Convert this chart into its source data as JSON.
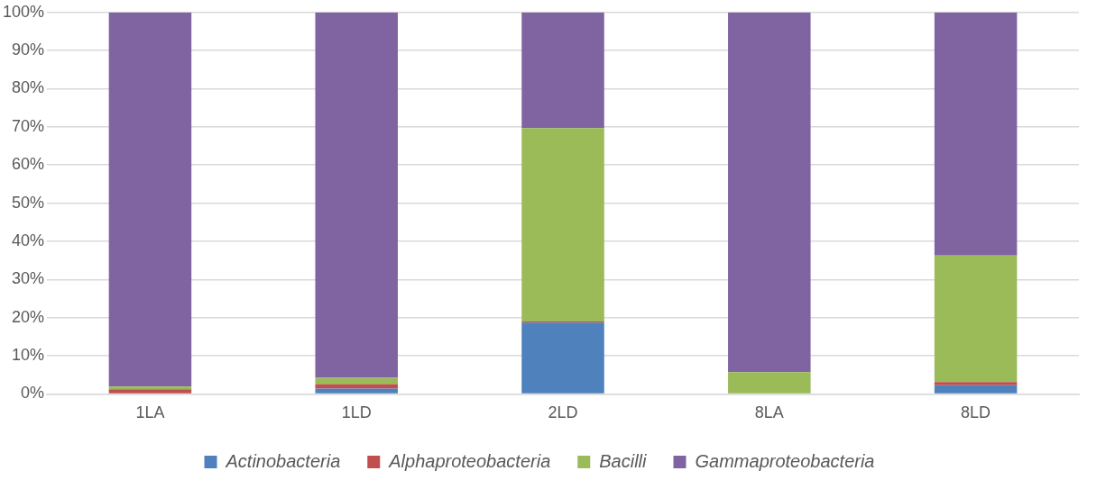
{
  "chart_data": {
    "type": "bar",
    "stacked": true,
    "categories": [
      "1LA",
      "1LD",
      "2LD",
      "8LA",
      "8LD"
    ],
    "series": [
      {
        "name": "Actinobacteria",
        "color": "#4f81bd",
        "values": [
          0,
          1.4,
          18.7,
          0,
          2.3
        ]
      },
      {
        "name": "Alphaproteobacteria",
        "color": "#c0504d",
        "values": [
          1.2,
          1.2,
          0.3,
          0,
          0.8
        ]
      },
      {
        "name": "Bacilli",
        "color": "#9bbb59",
        "values": [
          0.7,
          1.6,
          50.7,
          5.7,
          33.2
        ]
      },
      {
        "name": "Gammaproteobacteria",
        "color": "#8064a2",
        "values": [
          98.1,
          95.8,
          30.3,
          94.3,
          63.7
        ]
      }
    ],
    "ylim": [
      0,
      100
    ],
    "yticks": [
      {
        "value": 0,
        "label": "0%"
      },
      {
        "value": 10,
        "label": "10%"
      },
      {
        "value": 20,
        "label": "20%"
      },
      {
        "value": 30,
        "label": "30%"
      },
      {
        "value": 40,
        "label": "40%"
      },
      {
        "value": 50,
        "label": "50%"
      },
      {
        "value": 60,
        "label": "60%"
      },
      {
        "value": 70,
        "label": "70%"
      },
      {
        "value": 80,
        "label": "80%"
      },
      {
        "value": 90,
        "label": "90%"
      },
      {
        "value": 100,
        "label": "100%"
      }
    ],
    "grid": "y",
    "legend": "bottom"
  }
}
